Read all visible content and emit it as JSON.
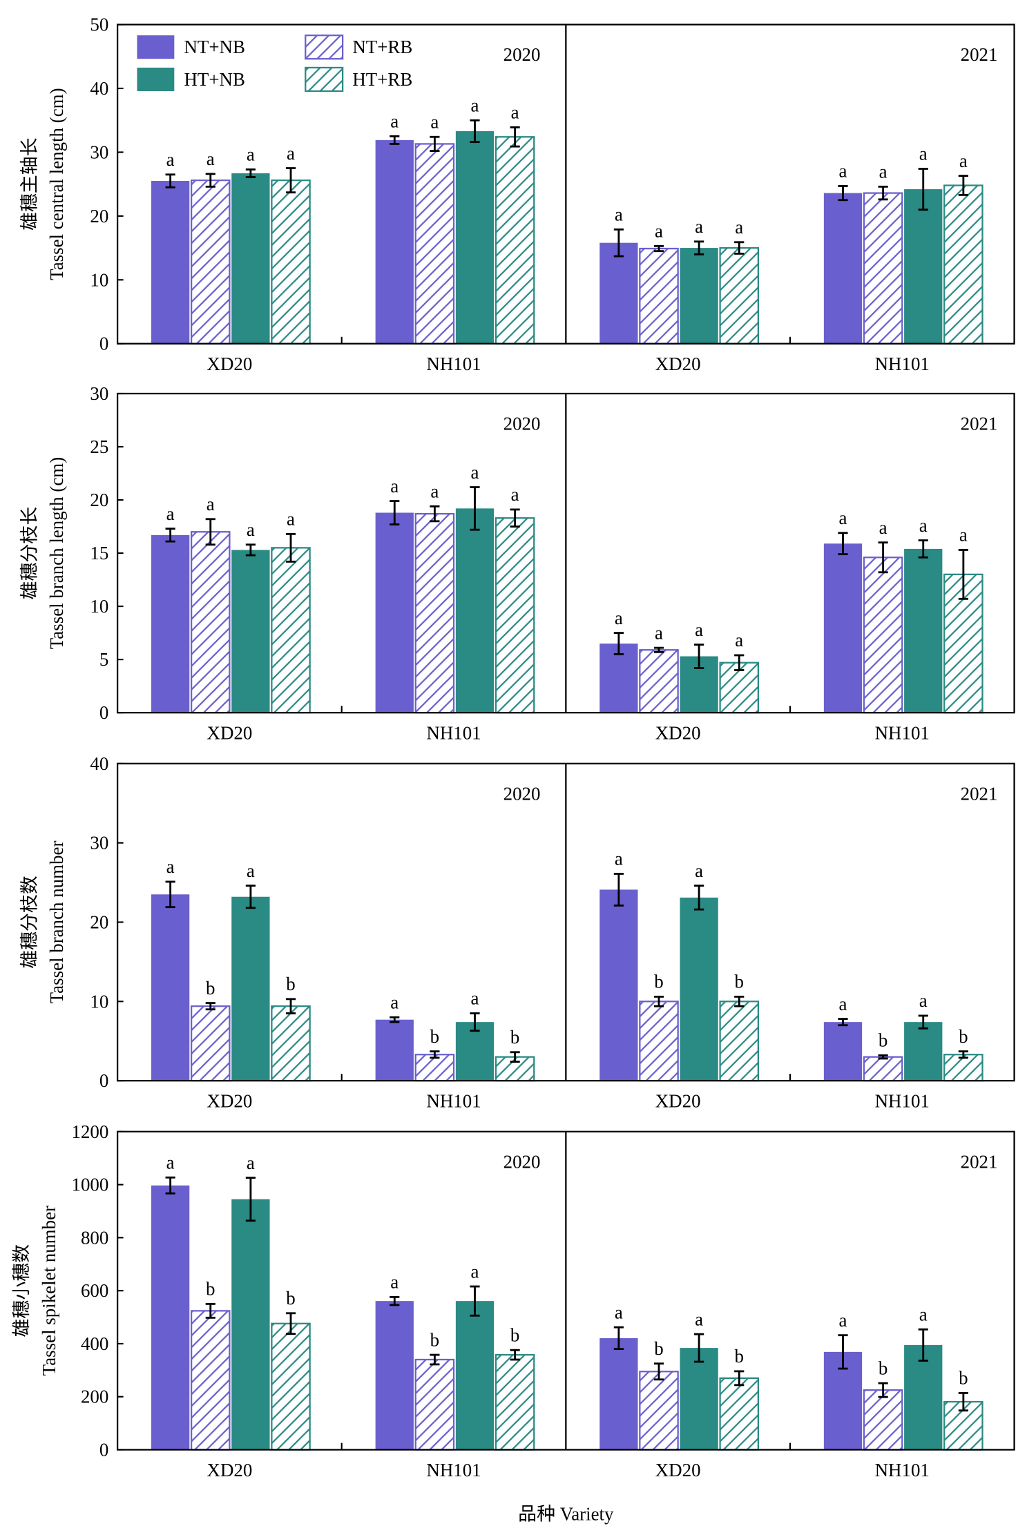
{
  "figure": {
    "xlabel": "品种 Variety"
  },
  "series_style": [
    {
      "color": "#6A5FCE",
      "fill": "solid"
    },
    {
      "color": "#6A5FCE",
      "fill": "hatch"
    },
    {
      "color": "#2A8A84",
      "fill": "solid"
    },
    {
      "color": "#2A8A84",
      "fill": "hatch"
    }
  ],
  "chart_data": [
    {
      "type": "bar",
      "ylabel_cn": "雄穗主轴长",
      "ylabel": "Tassel central length (cm)",
      "ylim": [
        0,
        50
      ],
      "yticks": [
        0,
        10,
        20,
        30,
        40,
        50
      ],
      "legend_position": "top-left",
      "panels": [
        {
          "year": "2020",
          "categories": [
            "XD20",
            "NH101"
          ],
          "series": [
            {
              "name": "NT+NB",
              "values": [
                25.5,
                31.9
              ],
              "errors": [
                1.0,
                0.6
              ],
              "letters": [
                "a",
                "a"
              ]
            },
            {
              "name": "NT+RB",
              "values": [
                25.6,
                31.3
              ],
              "errors": [
                1.0,
                1.1
              ],
              "letters": [
                "a",
                "a"
              ]
            },
            {
              "name": "HT+NB",
              "values": [
                26.7,
                33.3
              ],
              "errors": [
                0.6,
                1.7
              ],
              "letters": [
                "a",
                "a"
              ]
            },
            {
              "name": "HT+RB",
              "values": [
                25.6,
                32.4
              ],
              "errors": [
                1.9,
                1.5
              ],
              "letters": [
                "a",
                "a"
              ]
            }
          ]
        },
        {
          "year": "2021",
          "categories": [
            "XD20",
            "NH101"
          ],
          "series": [
            {
              "name": "NT+NB",
              "values": [
                15.8,
                23.6
              ],
              "errors": [
                2.1,
                1.1
              ],
              "letters": [
                "a",
                "a"
              ]
            },
            {
              "name": "NT+RB",
              "values": [
                14.9,
                23.6
              ],
              "errors": [
                0.4,
                1.0
              ],
              "letters": [
                "a",
                "a"
              ]
            },
            {
              "name": "HT+NB",
              "values": [
                15.0,
                24.2
              ],
              "errors": [
                1.0,
                3.2
              ],
              "letters": [
                "a",
                "a"
              ]
            },
            {
              "name": "HT+RB",
              "values": [
                15.0,
                24.8
              ],
              "errors": [
                0.9,
                1.5
              ],
              "letters": [
                "a",
                "a"
              ]
            }
          ]
        }
      ]
    },
    {
      "type": "bar",
      "ylabel_cn": "雄穗分枝长",
      "ylabel": "Tassel branch  length (cm)",
      "ylim": [
        0,
        30
      ],
      "yticks": [
        0,
        5,
        10,
        15,
        20,
        25,
        30
      ],
      "panels": [
        {
          "year": "2020",
          "categories": [
            "XD20",
            "NH101"
          ],
          "series": [
            {
              "name": "NT+NB",
              "values": [
                16.7,
                18.8
              ],
              "errors": [
                0.6,
                1.1
              ],
              "letters": [
                "a",
                "a"
              ]
            },
            {
              "name": "NT+RB",
              "values": [
                17.0,
                18.7
              ],
              "errors": [
                1.2,
                0.7
              ],
              "letters": [
                "a",
                "a"
              ]
            },
            {
              "name": "HT+NB",
              "values": [
                15.3,
                19.2
              ],
              "errors": [
                0.5,
                2.0
              ],
              "letters": [
                "a",
                "a"
              ]
            },
            {
              "name": "HT+RB",
              "values": [
                15.5,
                18.3
              ],
              "errors": [
                1.3,
                0.8
              ],
              "letters": [
                "a",
                "a"
              ]
            }
          ]
        },
        {
          "year": "2021",
          "categories": [
            "XD20",
            "NH101"
          ],
          "series": [
            {
              "name": "NT+NB",
              "values": [
                6.5,
                15.9
              ],
              "errors": [
                1.0,
                1.0
              ],
              "letters": [
                "a",
                "a"
              ]
            },
            {
              "name": "NT+RB",
              "values": [
                5.9,
                14.6
              ],
              "errors": [
                0.2,
                1.4
              ],
              "letters": [
                "a",
                "a"
              ]
            },
            {
              "name": "HT+NB",
              "values": [
                5.3,
                15.4
              ],
              "errors": [
                1.1,
                0.8
              ],
              "letters": [
                "a",
                "a"
              ]
            },
            {
              "name": "HT+RB",
              "values": [
                4.7,
                13.0
              ],
              "errors": [
                0.7,
                2.3
              ],
              "letters": [
                "a",
                "a"
              ]
            }
          ]
        }
      ]
    },
    {
      "type": "bar",
      "ylabel_cn": "雄穗分枝数",
      "ylabel": "Tassel branch number",
      "ylim": [
        0,
        40
      ],
      "yticks": [
        0,
        10,
        20,
        30,
        40
      ],
      "panels": [
        {
          "year": "2020",
          "categories": [
            "XD20",
            "NH101"
          ],
          "series": [
            {
              "name": "NT+NB",
              "values": [
                23.5,
                7.7
              ],
              "errors": [
                1.6,
                0.3
              ],
              "letters": [
                "a",
                "a"
              ]
            },
            {
              "name": "NT+RB",
              "values": [
                9.4,
                3.3
              ],
              "errors": [
                0.4,
                0.4
              ],
              "letters": [
                "b",
                "b"
              ]
            },
            {
              "name": "HT+NB",
              "values": [
                23.2,
                7.4
              ],
              "errors": [
                1.4,
                1.1
              ],
              "letters": [
                "a",
                "a"
              ]
            },
            {
              "name": "HT+RB",
              "values": [
                9.4,
                3.0
              ],
              "errors": [
                0.9,
                0.6
              ],
              "letters": [
                "b",
                "b"
              ]
            }
          ]
        },
        {
          "year": "2021",
          "categories": [
            "XD20",
            "NH101"
          ],
          "series": [
            {
              "name": "NT+NB",
              "values": [
                24.1,
                7.4
              ],
              "errors": [
                2.0,
                0.4
              ],
              "letters": [
                "a",
                "a"
              ]
            },
            {
              "name": "NT+RB",
              "values": [
                10.0,
                3.0
              ],
              "errors": [
                0.6,
                0.2
              ],
              "letters": [
                "b",
                "b"
              ]
            },
            {
              "name": "HT+NB",
              "values": [
                23.1,
                7.4
              ],
              "errors": [
                1.5,
                0.8
              ],
              "letters": [
                "a",
                "a"
              ]
            },
            {
              "name": "HT+RB",
              "values": [
                10.0,
                3.3
              ],
              "errors": [
                0.6,
                0.4
              ],
              "letters": [
                "b",
                "b"
              ]
            }
          ]
        }
      ]
    },
    {
      "type": "bar",
      "ylabel_cn": "雄穗小穗数",
      "ylabel": "Tassel spikelet number",
      "ylim": [
        0,
        1200
      ],
      "yticks": [
        0,
        200,
        400,
        600,
        800,
        1000,
        1200
      ],
      "panels": [
        {
          "year": "2020",
          "categories": [
            "XD20",
            "NH101"
          ],
          "series": [
            {
              "name": "NT+NB",
              "values": [
                997,
                561
              ],
              "errors": [
                30,
                15
              ],
              "letters": [
                "a",
                "a"
              ]
            },
            {
              "name": "NT+RB",
              "values": [
                524,
                340
              ],
              "errors": [
                26,
                18
              ],
              "letters": [
                "b",
                "b"
              ]
            },
            {
              "name": "HT+NB",
              "values": [
                945,
                561
              ],
              "errors": [
                81,
                55
              ],
              "letters": [
                "a",
                "a"
              ]
            },
            {
              "name": "HT+RB",
              "values": [
                476,
                358
              ],
              "errors": [
                39,
                18
              ],
              "letters": [
                "b",
                "b"
              ]
            }
          ]
        },
        {
          "year": "2021",
          "categories": [
            "XD20",
            "NH101"
          ],
          "series": [
            {
              "name": "NT+NB",
              "values": [
                421,
                369
              ],
              "errors": [
                41,
                63
              ],
              "letters": [
                "a",
                "a"
              ]
            },
            {
              "name": "NT+RB",
              "values": [
                295,
                225
              ],
              "errors": [
                30,
                26
              ],
              "letters": [
                "b",
                "b"
              ]
            },
            {
              "name": "HT+NB",
              "values": [
                384,
                395
              ],
              "errors": [
                52,
                59
              ],
              "letters": [
                "a",
                "a"
              ]
            },
            {
              "name": "HT+RB",
              "values": [
                270,
                181
              ],
              "errors": [
                26,
                33
              ],
              "letters": [
                "b",
                "b"
              ]
            }
          ]
        }
      ]
    }
  ]
}
